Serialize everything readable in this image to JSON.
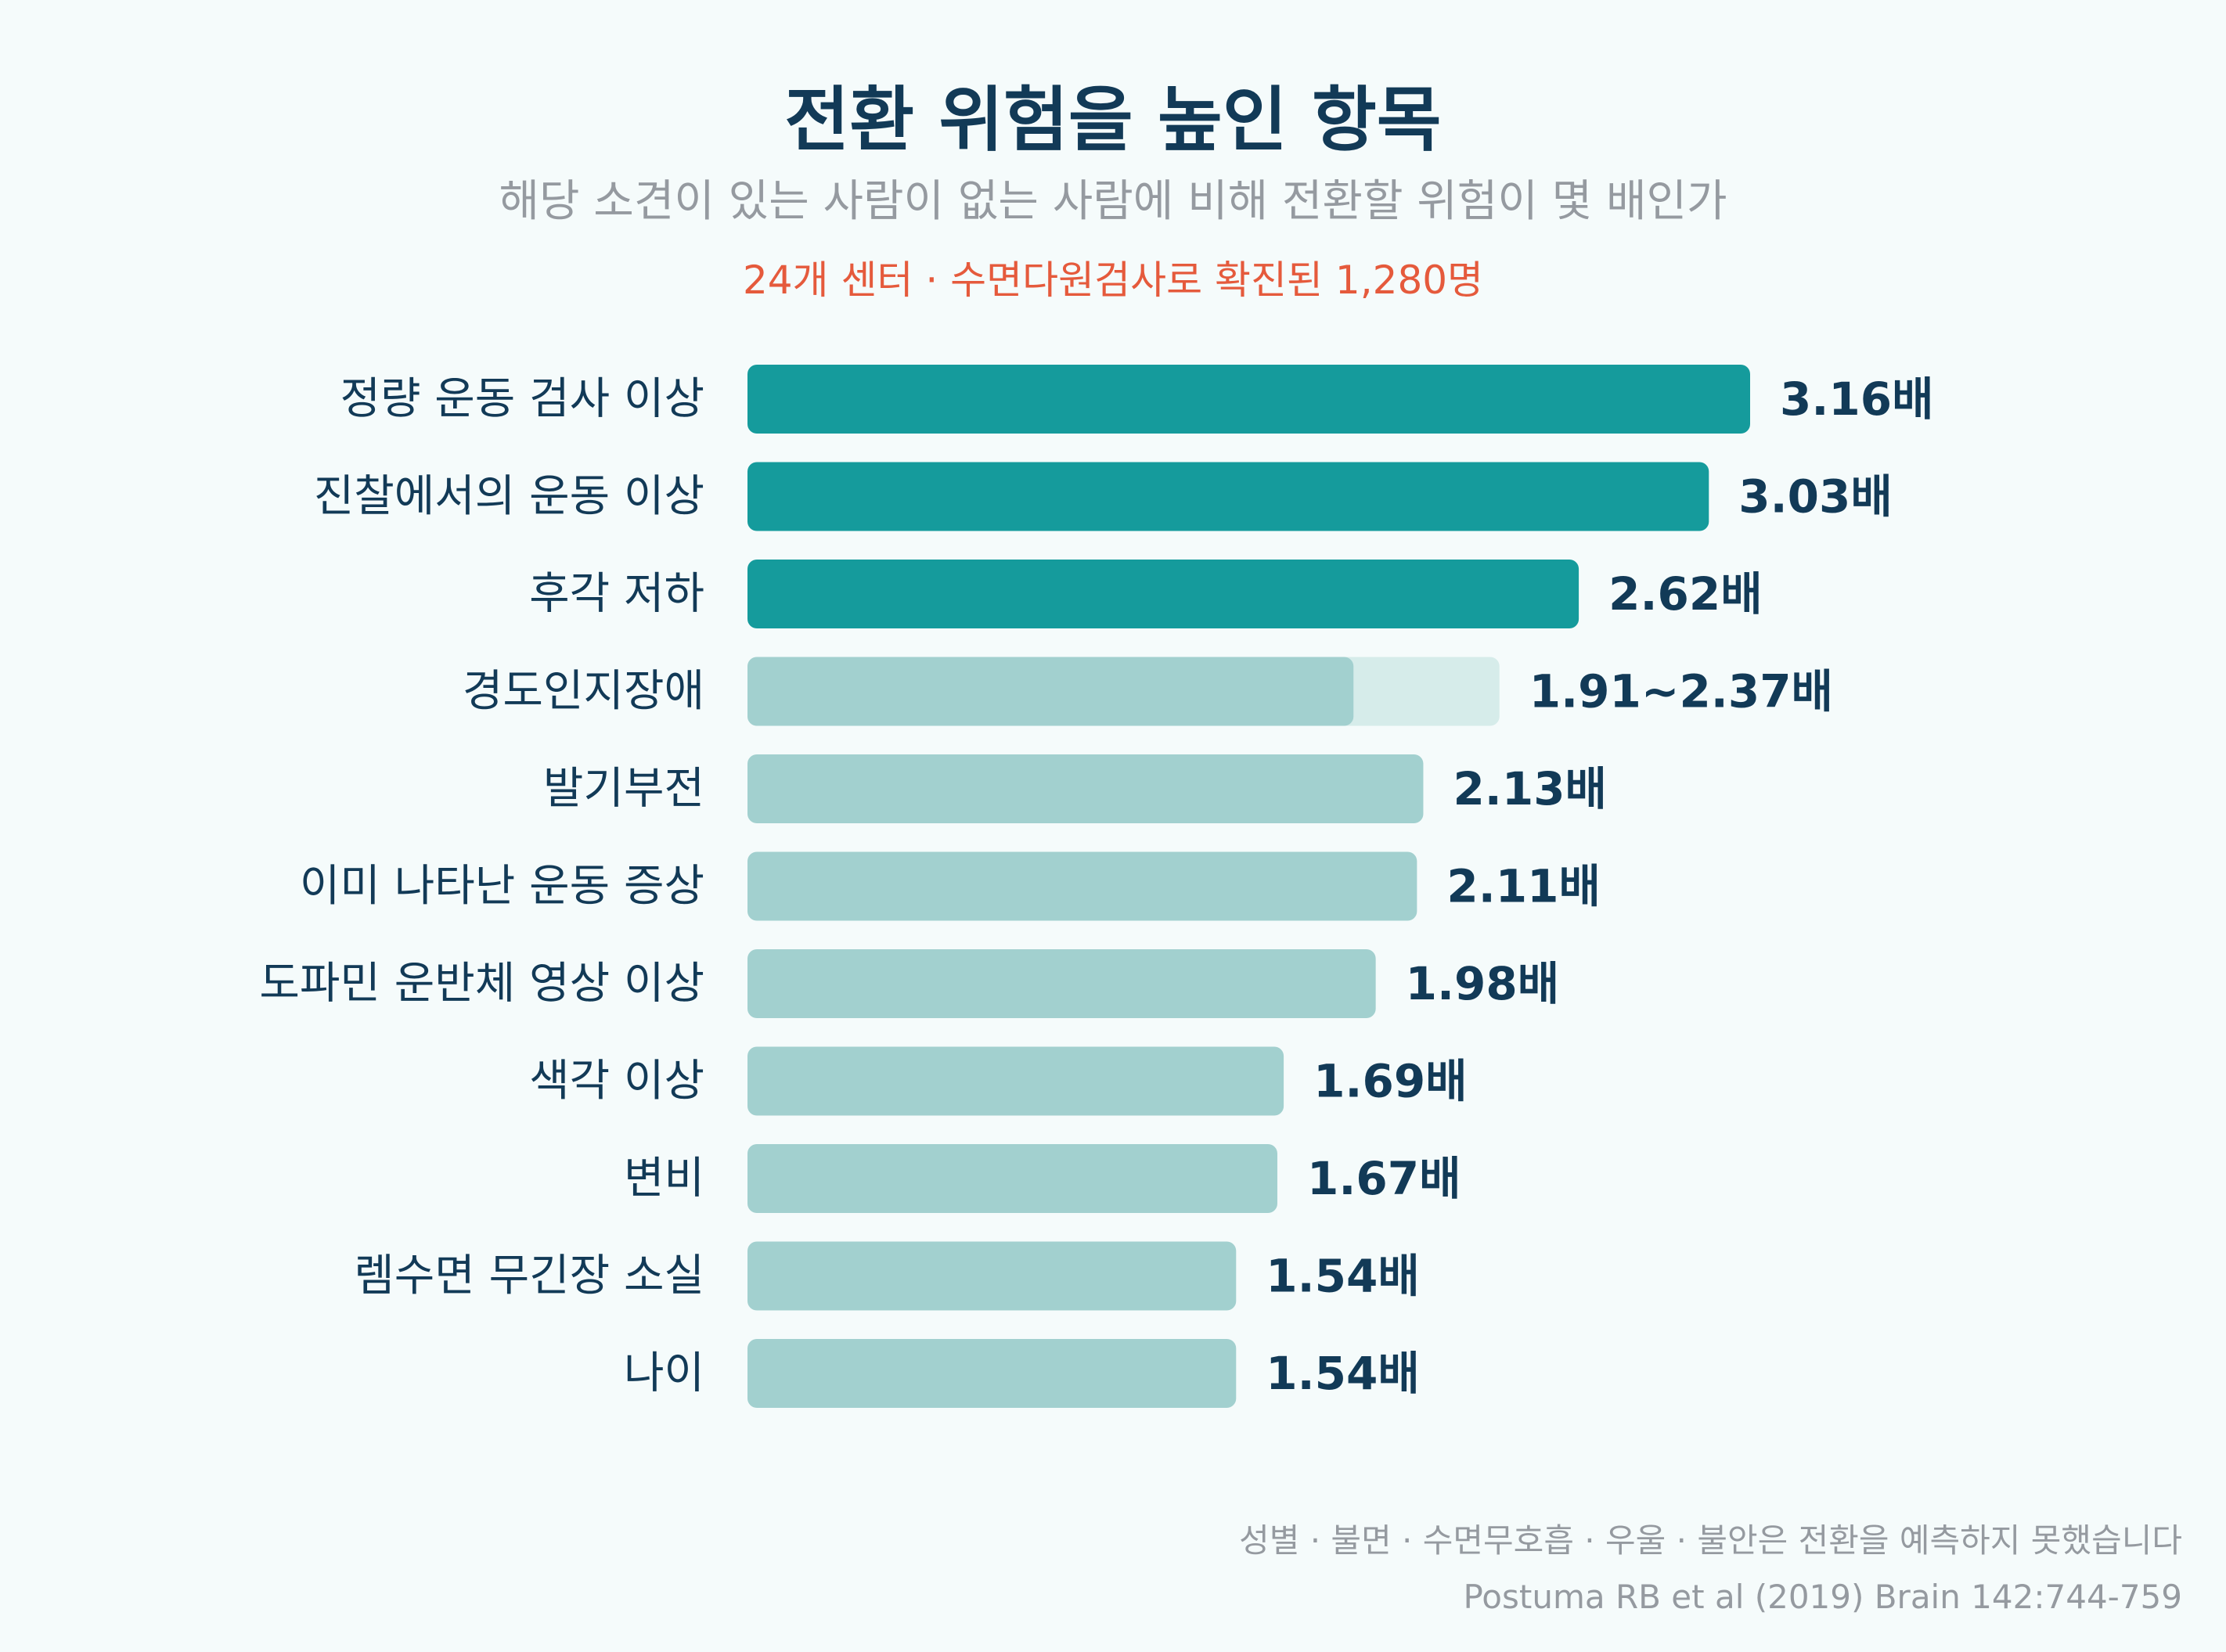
{
  "header": {
    "title": "전환 위험을 높인 항목",
    "subtitle": "해당 소견이 있는 사람이 없는 사람에 비해 전환할 위험이 몇 배인가",
    "note": "24개 센터 · 수면다원검사로 확진된 1,280명"
  },
  "footer": {
    "note": "성별 · 불면 · 수면무호흡 · 우울 · 불안은 전환을 예측하지 못했습니다",
    "source": "Postuma RB et al (2019) Brain 142:744-759"
  },
  "chart_data": {
    "type": "bar",
    "orientation": "horizontal",
    "categories": [
      "정량 운동 검사 이상",
      "진찰에서의 운동 이상",
      "후각 저하",
      "경도인지장애",
      "발기부전",
      "이미 나타난 운동 증상",
      "도파민 운반체 영상 이상",
      "색각 이상",
      "변비",
      "렘수면 무긴장 소실",
      "나이"
    ],
    "values": [
      3.16,
      3.03,
      2.62,
      1.91,
      2.13,
      2.11,
      1.98,
      1.69,
      1.67,
      1.54,
      1.54
    ],
    "range_high": [
      null,
      null,
      null,
      2.37,
      null,
      null,
      null,
      null,
      null,
      null,
      null
    ],
    "labels": [
      "3.16배",
      "3.03배",
      "2.62배",
      "1.91~2.37배",
      "2.13배",
      "2.11배",
      "1.98배",
      "1.69배",
      "1.67배",
      "1.54배",
      "1.54배"
    ],
    "highlight_count": 3,
    "xlim": [
      0,
      3.16
    ],
    "colors": {
      "highlight": "#159b9c",
      "normal": "#a2d0cf",
      "range": "#d6ecea",
      "label": "#123a57",
      "category": "#123a57"
    },
    "grid": false,
    "legend": "none"
  }
}
